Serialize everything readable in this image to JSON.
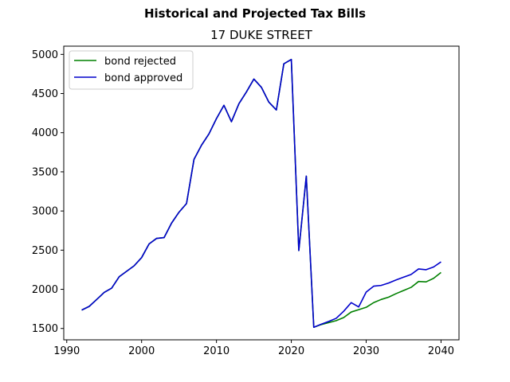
{
  "chart_data": {
    "type": "line",
    "suptitle": "Historical and Projected Tax Bills",
    "title": "17 DUKE STREET",
    "xlabel": "",
    "ylabel": "",
    "xlim": [
      1989.6,
      2042.4
    ],
    "ylim": [
      1355,
      5105
    ],
    "x_ticks": [
      1990,
      2000,
      2010,
      2020,
      2030,
      2040
    ],
    "y_ticks": [
      1500,
      2000,
      2500,
      3000,
      3500,
      4000,
      4500,
      5000
    ],
    "grid": false,
    "legend_position": "upper-left",
    "series": [
      {
        "name": "bond rejected",
        "color": "#008000",
        "x": [
          1992,
          1993,
          1994,
          1995,
          1996,
          1997,
          1998,
          1999,
          2000,
          2001,
          2002,
          2003,
          2004,
          2005,
          2006,
          2007,
          2008,
          2009,
          2010,
          2011,
          2012,
          2013,
          2014,
          2015,
          2016,
          2017,
          2018,
          2019,
          2020,
          2021,
          2022,
          2023,
          2024,
          2025,
          2026,
          2027,
          2028,
          2029,
          2030,
          2031,
          2032,
          2033,
          2034,
          2035,
          2036,
          2037,
          2038,
          2039,
          2040
        ],
        "y": [
          1735,
          1782,
          1870,
          1960,
          2015,
          2160,
          2230,
          2300,
          2405,
          2580,
          2650,
          2660,
          2845,
          2985,
          3095,
          3660,
          3840,
          3985,
          4180,
          4350,
          4140,
          4370,
          4520,
          4685,
          4580,
          4390,
          4290,
          4880,
          4935,
          2495,
          3445,
          1515,
          1550,
          1575,
          1600,
          1640,
          1710,
          1740,
          1770,
          1830,
          1870,
          1900,
          1945,
          1985,
          2025,
          2100,
          2095,
          2140,
          2215
        ]
      },
      {
        "name": "bond approved",
        "color": "#0000cc",
        "x": [
          1992,
          1993,
          1994,
          1995,
          1996,
          1997,
          1998,
          1999,
          2000,
          2001,
          2002,
          2003,
          2004,
          2005,
          2006,
          2007,
          2008,
          2009,
          2010,
          2011,
          2012,
          2013,
          2014,
          2015,
          2016,
          2017,
          2018,
          2019,
          2020,
          2021,
          2022,
          2023,
          2024,
          2025,
          2026,
          2027,
          2028,
          2029,
          2030,
          2031,
          2032,
          2033,
          2034,
          2035,
          2036,
          2037,
          2038,
          2039,
          2040
        ],
        "y": [
          1735,
          1782,
          1870,
          1960,
          2015,
          2160,
          2230,
          2300,
          2405,
          2580,
          2650,
          2660,
          2845,
          2985,
          3095,
          3660,
          3840,
          3985,
          4180,
          4350,
          4140,
          4370,
          4520,
          4685,
          4580,
          4390,
          4290,
          4880,
          4935,
          2495,
          3445,
          1515,
          1555,
          1590,
          1630,
          1720,
          1830,
          1775,
          1965,
          2040,
          2050,
          2080,
          2120,
          2155,
          2190,
          2260,
          2250,
          2285,
          2350
        ]
      }
    ]
  }
}
